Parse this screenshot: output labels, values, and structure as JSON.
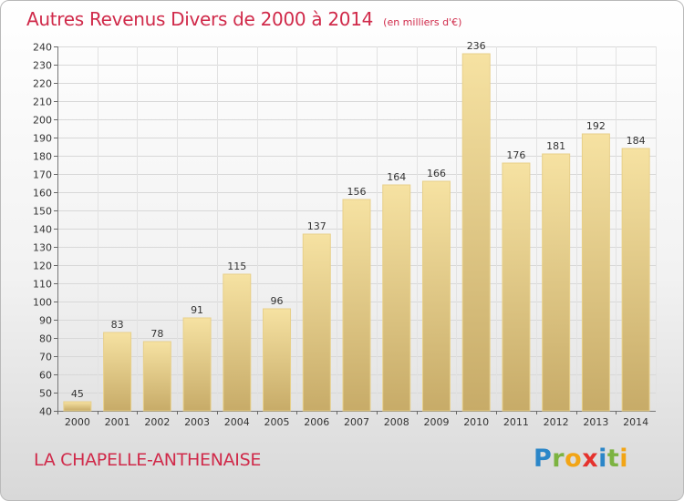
{
  "title": "Autres Revenus Divers de 2000 à 2014",
  "unit": "(en milliers d'€)",
  "commune": "LA CHAPELLE-ANTHENAISE",
  "logo": "Proxiti",
  "colors": {
    "title": "#d02a4a",
    "bar_top": "#f6e2a2",
    "bar_bottom": "#c9ad6a",
    "bar_edge": "#e6cc83",
    "grid": "#d6d6d6"
  },
  "chart_data": {
    "type": "bar",
    "title": "Autres Revenus Divers de 2000 à 2014",
    "xlabel": "",
    "ylabel": "",
    "categories": [
      "2000",
      "2001",
      "2002",
      "2003",
      "2004",
      "2005",
      "2006",
      "2007",
      "2008",
      "2009",
      "2010",
      "2011",
      "2012",
      "2013",
      "2014"
    ],
    "values": [
      45,
      83,
      78,
      91,
      115,
      96,
      137,
      156,
      164,
      166,
      236,
      176,
      181,
      192,
      184
    ],
    "ylim": [
      40,
      240
    ],
    "ytick_step": 10,
    "grid": true,
    "data_labels": true
  }
}
